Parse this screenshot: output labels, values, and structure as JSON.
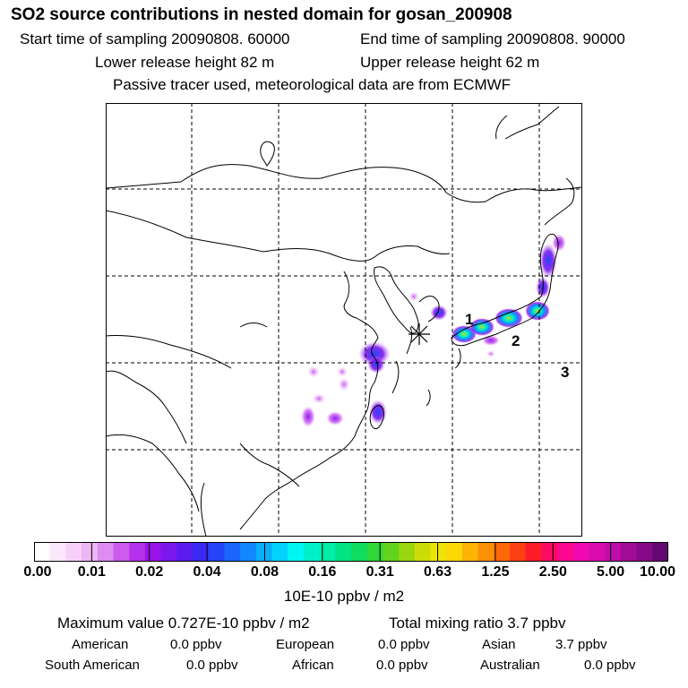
{
  "header": {
    "title": "SO2 source contributions in nested domain for gosan_200908",
    "start_time": "Start time of sampling 20090808. 60000",
    "end_time": "End time of sampling 20090808. 90000",
    "lower_height": "Lower release height   82 m",
    "upper_height": "Upper release height   62 m",
    "tracer_note": "Passive tracer used, meteorological data are from ECMWF"
  },
  "map": {
    "station_marker": "receptor-star",
    "region_labels": [
      "1",
      "2",
      "3"
    ]
  },
  "colorbar": {
    "tick_labels": [
      "0.00",
      "0.01",
      "0.02",
      "0.04",
      "0.08",
      "0.16",
      "0.31",
      "0.63",
      "1.25",
      "2.50",
      "5.00",
      "10.00"
    ],
    "unit": "10E-10 ppbv / m2",
    "colors": [
      "#ffffff",
      "#fce8fc",
      "#f6d0f8",
      "#eeb6f4",
      "#de8cf0",
      "#cc5cee",
      "#b532ec",
      "#9a14ea",
      "#7a18ee",
      "#5a1cf0",
      "#3a28f4",
      "#2444f8",
      "#1a66fa",
      "#1288fc",
      "#0aaefc",
      "#04d2fc",
      "#00f6f2",
      "#00f0cc",
      "#00ecaa",
      "#00e484",
      "#10dc5e",
      "#30d63a",
      "#60d41c",
      "#98d610",
      "#ccdc08",
      "#ece404",
      "#fcd804",
      "#fcb404",
      "#fc9004",
      "#fc6808",
      "#fc4016",
      "#fc1c28",
      "#fc0c60",
      "#fc0890",
      "#f008b0",
      "#d80cb0",
      "#c00ca8",
      "#a00c98",
      "#860a88",
      "#640874"
    ]
  },
  "summary": {
    "max_value": "Maximum value  0.727E-10 ppbv / m2",
    "total_mixing": "Total mixing ratio       3.7 ppbv",
    "regions": [
      {
        "name": "American",
        "value": "0.0 ppbv"
      },
      {
        "name": "European",
        "value": "0.0 ppbv"
      },
      {
        "name": "Asian",
        "value": "3.7 ppbv"
      },
      {
        "name": "South American",
        "value": "0.0 ppbv"
      },
      {
        "name": "African",
        "value": "0.0 ppbv"
      },
      {
        "name": "Australian",
        "value": "0.0 ppbv"
      }
    ]
  }
}
